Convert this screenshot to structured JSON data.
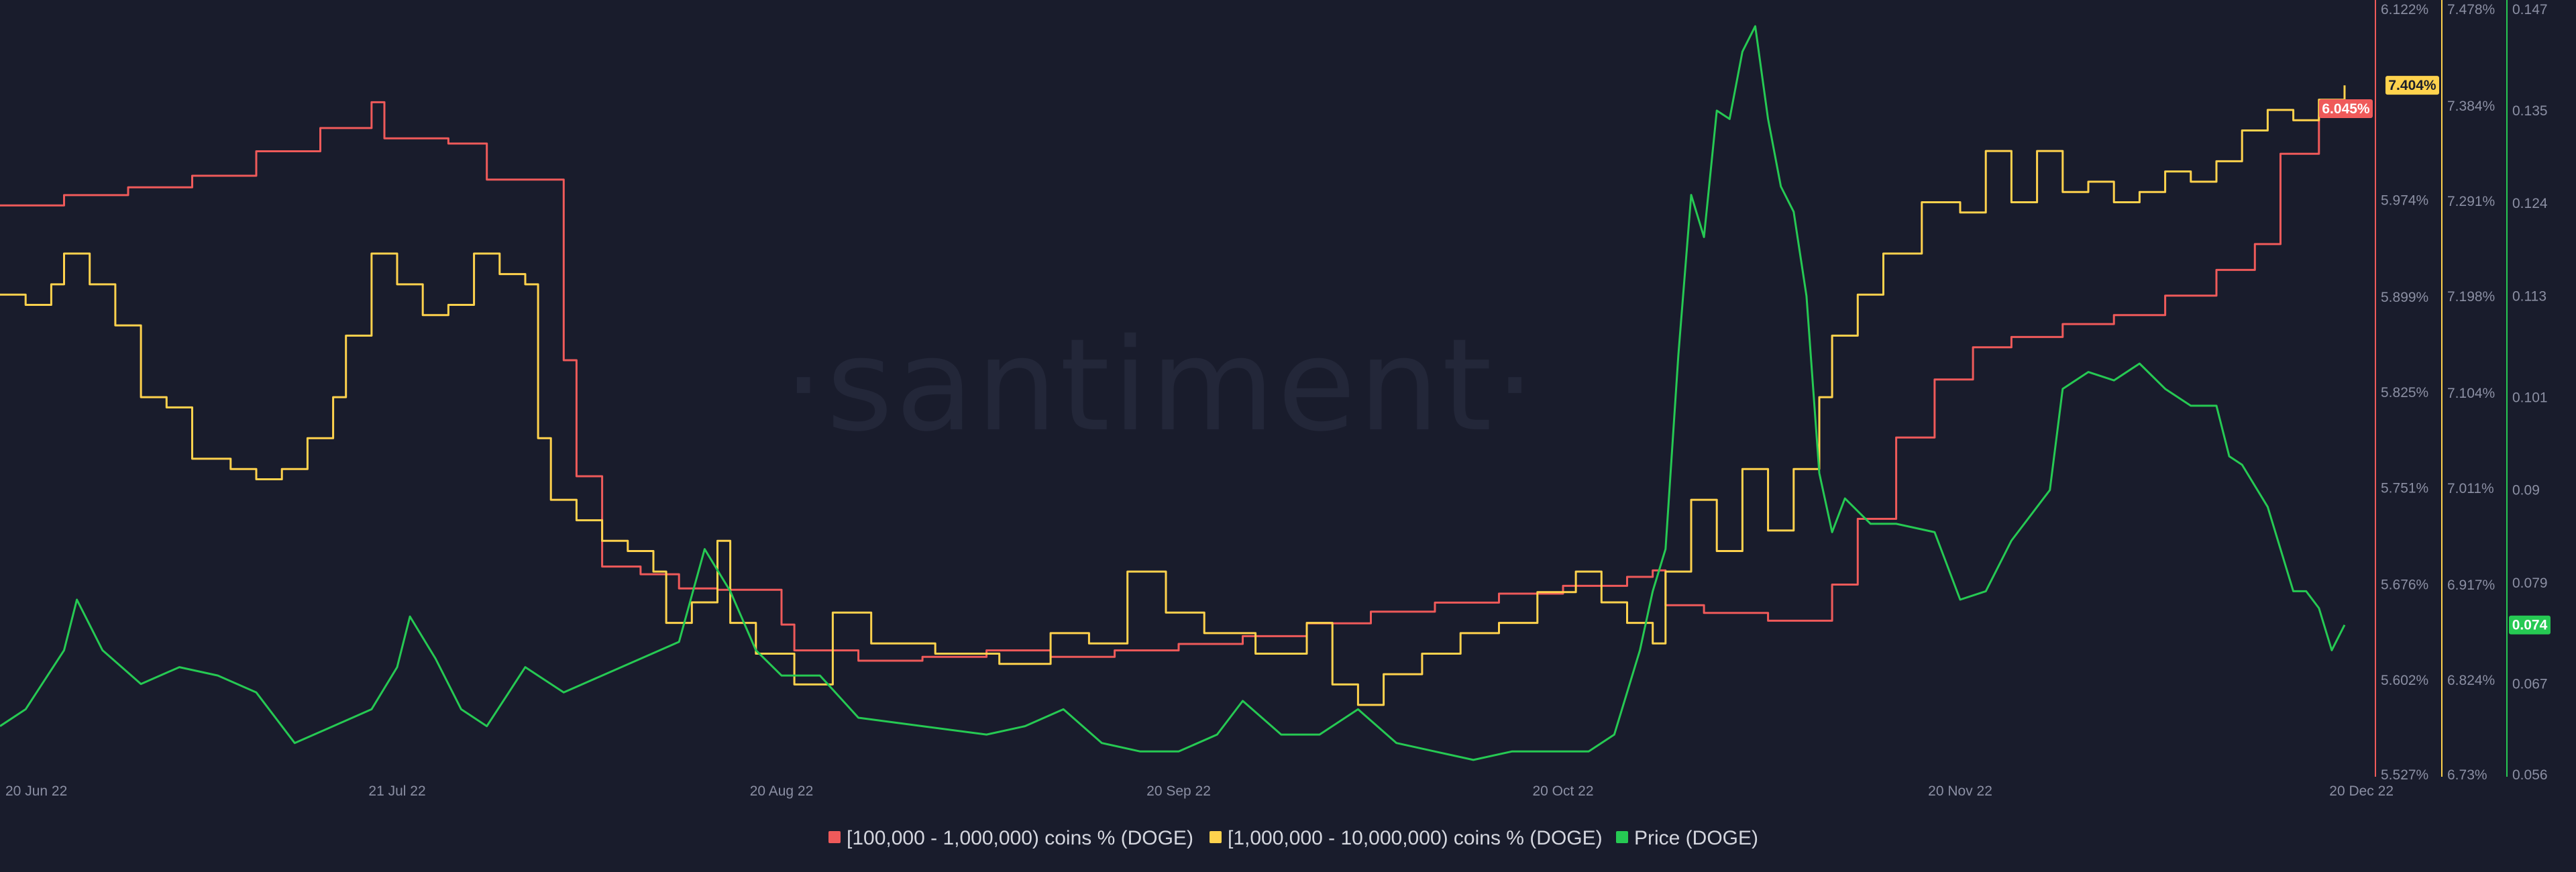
{
  "watermark": "·santiment·",
  "colors": {
    "background": "#191c2c",
    "red": "#ef5a5a",
    "yellow": "#ffd24d",
    "green": "#26c953",
    "axis_text": "#8b8fa3"
  },
  "chart_data": {
    "type": "line",
    "grid": false,
    "legend_position": "bottom-center",
    "x_ticks": [
      "20 Jun 22",
      "21 Jul 22",
      "20 Aug 22",
      "20 Sep 22",
      "20 Oct 22",
      "20 Nov 22",
      "20 Dec 22"
    ],
    "x_range": [
      "2022-06-20",
      "2022-12-20"
    ],
    "axes": {
      "red": {
        "range": [
          5.527,
          6.122
        ],
        "ticks": [
          "6.122%",
          "6.045%",
          "5.974%",
          "5.899%",
          "5.825%",
          "5.751%",
          "5.676%",
          "5.602%",
          "5.527%"
        ],
        "current_label": "6.045%"
      },
      "yellow": {
        "range": [
          6.73,
          7.478
        ],
        "ticks": [
          "7.478%",
          "7.404%",
          "7.384%",
          "7.291%",
          "7.198%",
          "7.104%",
          "7.011%",
          "6.917%",
          "6.824%",
          "6.73%"
        ],
        "current_label": "7.404%"
      },
      "green": {
        "range": [
          0.056,
          0.147
        ],
        "ticks": [
          "0.147",
          "0.135",
          "0.124",
          "0.113",
          "0.101",
          "0.09",
          "0.079",
          "0.067",
          "0.056"
        ],
        "current_label": "0.074"
      }
    },
    "series": [
      {
        "name": "[100,000  - 1,000,000) coins % (DOGE)",
        "axis": "red",
        "points": [
          [
            "2022-06-20",
            5.97
          ],
          [
            "2022-06-25",
            5.978
          ],
          [
            "2022-06-30",
            5.984
          ],
          [
            "2022-07-05",
            5.993
          ],
          [
            "2022-07-10",
            6.012
          ],
          [
            "2022-07-15",
            6.03
          ],
          [
            "2022-07-19",
            6.05
          ],
          [
            "2022-07-20",
            6.022
          ],
          [
            "2022-07-25",
            6.018
          ],
          [
            "2022-07-28",
            5.99
          ],
          [
            "2022-08-02",
            5.99
          ],
          [
            "2022-08-03",
            5.85
          ],
          [
            "2022-08-04",
            5.76
          ],
          [
            "2022-08-06",
            5.69
          ],
          [
            "2022-08-09",
            5.684
          ],
          [
            "2022-08-12",
            5.673
          ],
          [
            "2022-08-15",
            5.672
          ],
          [
            "2022-08-20",
            5.645
          ],
          [
            "2022-08-21",
            5.625
          ],
          [
            "2022-08-26",
            5.617
          ],
          [
            "2022-08-31",
            5.62
          ],
          [
            "2022-09-05",
            5.625
          ],
          [
            "2022-09-10",
            5.62
          ],
          [
            "2022-09-15",
            5.625
          ],
          [
            "2022-09-20",
            5.63
          ],
          [
            "2022-09-25",
            5.636
          ],
          [
            "2022-09-30",
            5.646
          ],
          [
            "2022-10-05",
            5.655
          ],
          [
            "2022-10-10",
            5.662
          ],
          [
            "2022-10-15",
            5.669
          ],
          [
            "2022-10-20",
            5.675
          ],
          [
            "2022-10-25",
            5.682
          ],
          [
            "2022-10-27",
            5.687
          ],
          [
            "2022-10-28",
            5.66
          ],
          [
            "2022-10-31",
            5.654
          ],
          [
            "2022-11-05",
            5.648
          ],
          [
            "2022-11-10",
            5.676
          ],
          [
            "2022-11-12",
            5.727
          ],
          [
            "2022-11-15",
            5.79
          ],
          [
            "2022-11-18",
            5.835
          ],
          [
            "2022-11-21",
            5.86
          ],
          [
            "2022-11-24",
            5.868
          ],
          [
            "2022-11-28",
            5.878
          ],
          [
            "2022-12-02",
            5.885
          ],
          [
            "2022-12-06",
            5.9
          ],
          [
            "2022-12-10",
            5.92
          ],
          [
            "2022-12-13",
            5.94
          ],
          [
            "2022-12-15",
            6.01
          ],
          [
            "2022-12-18",
            6.04
          ],
          [
            "2022-12-20",
            6.045
          ]
        ]
      },
      {
        "name": "[1,000,000 - 10,000,000) coins % (DOGE)",
        "axis": "yellow",
        "points": [
          [
            "2022-06-20",
            7.2
          ],
          [
            "2022-06-22",
            7.19
          ],
          [
            "2022-06-24",
            7.21
          ],
          [
            "2022-06-25",
            7.24
          ],
          [
            "2022-06-27",
            7.21
          ],
          [
            "2022-06-29",
            7.17
          ],
          [
            "2022-07-01",
            7.1
          ],
          [
            "2022-07-03",
            7.09
          ],
          [
            "2022-07-05",
            7.04
          ],
          [
            "2022-07-08",
            7.03
          ],
          [
            "2022-07-10",
            7.02
          ],
          [
            "2022-07-12",
            7.03
          ],
          [
            "2022-07-14",
            7.06
          ],
          [
            "2022-07-16",
            7.1
          ],
          [
            "2022-07-17",
            7.16
          ],
          [
            "2022-07-19",
            7.24
          ],
          [
            "2022-07-21",
            7.21
          ],
          [
            "2022-07-23",
            7.18
          ],
          [
            "2022-07-25",
            7.19
          ],
          [
            "2022-07-27",
            7.24
          ],
          [
            "2022-07-29",
            7.22
          ],
          [
            "2022-07-31",
            7.21
          ],
          [
            "2022-08-01",
            7.06
          ],
          [
            "2022-08-02",
            7.0
          ],
          [
            "2022-08-04",
            6.98
          ],
          [
            "2022-08-06",
            6.96
          ],
          [
            "2022-08-08",
            6.95
          ],
          [
            "2022-08-10",
            6.93
          ],
          [
            "2022-08-11",
            6.88
          ],
          [
            "2022-08-13",
            6.9
          ],
          [
            "2022-08-15",
            6.96
          ],
          [
            "2022-08-16",
            6.88
          ],
          [
            "2022-08-18",
            6.85
          ],
          [
            "2022-08-21",
            6.82
          ],
          [
            "2022-08-24",
            6.89
          ],
          [
            "2022-08-27",
            6.86
          ],
          [
            "2022-09-01",
            6.85
          ],
          [
            "2022-09-06",
            6.84
          ],
          [
            "2022-09-10",
            6.87
          ],
          [
            "2022-09-13",
            6.86
          ],
          [
            "2022-09-16",
            6.93
          ],
          [
            "2022-09-19",
            6.89
          ],
          [
            "2022-09-22",
            6.87
          ],
          [
            "2022-09-26",
            6.85
          ],
          [
            "2022-09-30",
            6.88
          ],
          [
            "2022-10-02",
            6.82
          ],
          [
            "2022-10-04",
            6.8
          ],
          [
            "2022-10-06",
            6.83
          ],
          [
            "2022-10-09",
            6.85
          ],
          [
            "2022-10-12",
            6.87
          ],
          [
            "2022-10-15",
            6.88
          ],
          [
            "2022-10-18",
            6.91
          ],
          [
            "2022-10-21",
            6.93
          ],
          [
            "2022-10-23",
            6.9
          ],
          [
            "2022-10-25",
            6.88
          ],
          [
            "2022-10-27",
            6.86
          ],
          [
            "2022-10-28",
            6.93
          ],
          [
            "2022-10-30",
            7.0
          ],
          [
            "2022-11-01",
            6.95
          ],
          [
            "2022-11-03",
            7.03
          ],
          [
            "2022-11-05",
            6.97
          ],
          [
            "2022-11-07",
            7.03
          ],
          [
            "2022-11-09",
            7.1
          ],
          [
            "2022-11-10",
            7.16
          ],
          [
            "2022-11-12",
            7.2
          ],
          [
            "2022-11-14",
            7.24
          ],
          [
            "2022-11-17",
            7.29
          ],
          [
            "2022-11-20",
            7.28
          ],
          [
            "2022-11-22",
            7.34
          ],
          [
            "2022-11-24",
            7.29
          ],
          [
            "2022-11-26",
            7.34
          ],
          [
            "2022-11-28",
            7.3
          ],
          [
            "2022-11-30",
            7.31
          ],
          [
            "2022-12-02",
            7.29
          ],
          [
            "2022-12-04",
            7.3
          ],
          [
            "2022-12-06",
            7.32
          ],
          [
            "2022-12-08",
            7.31
          ],
          [
            "2022-12-10",
            7.33
          ],
          [
            "2022-12-12",
            7.36
          ],
          [
            "2022-12-14",
            7.38
          ],
          [
            "2022-12-16",
            7.37
          ],
          [
            "2022-12-18",
            7.39
          ],
          [
            "2022-12-20",
            7.404
          ]
        ]
      },
      {
        "name": "Price (DOGE)",
        "axis": "green",
        "points": [
          [
            "2022-06-20",
            0.062
          ],
          [
            "2022-06-22",
            0.064
          ],
          [
            "2022-06-25",
            0.071
          ],
          [
            "2022-06-26",
            0.077
          ],
          [
            "2022-06-28",
            0.071
          ],
          [
            "2022-07-01",
            0.067
          ],
          [
            "2022-07-04",
            0.069
          ],
          [
            "2022-07-07",
            0.068
          ],
          [
            "2022-07-10",
            0.066
          ],
          [
            "2022-07-13",
            0.06
          ],
          [
            "2022-07-16",
            0.062
          ],
          [
            "2022-07-19",
            0.064
          ],
          [
            "2022-07-21",
            0.069
          ],
          [
            "2022-07-22",
            0.075
          ],
          [
            "2022-07-24",
            0.07
          ],
          [
            "2022-07-26",
            0.064
          ],
          [
            "2022-07-28",
            0.062
          ],
          [
            "2022-07-31",
            0.069
          ],
          [
            "2022-08-03",
            0.066
          ],
          [
            "2022-08-06",
            0.068
          ],
          [
            "2022-08-09",
            0.07
          ],
          [
            "2022-08-12",
            0.072
          ],
          [
            "2022-08-14",
            0.083
          ],
          [
            "2022-08-16",
            0.078
          ],
          [
            "2022-08-18",
            0.071
          ],
          [
            "2022-08-20",
            0.068
          ],
          [
            "2022-08-23",
            0.068
          ],
          [
            "2022-08-26",
            0.063
          ],
          [
            "2022-08-31",
            0.062
          ],
          [
            "2022-09-05",
            0.061
          ],
          [
            "2022-09-08",
            0.062
          ],
          [
            "2022-09-11",
            0.064
          ],
          [
            "2022-09-14",
            0.06
          ],
          [
            "2022-09-17",
            0.059
          ],
          [
            "2022-09-20",
            0.059
          ],
          [
            "2022-09-23",
            0.061
          ],
          [
            "2022-09-25",
            0.065
          ],
          [
            "2022-09-28",
            0.061
          ],
          [
            "2022-10-01",
            0.061
          ],
          [
            "2022-10-04",
            0.064
          ],
          [
            "2022-10-07",
            0.06
          ],
          [
            "2022-10-10",
            0.059
          ],
          [
            "2022-10-13",
            0.058
          ],
          [
            "2022-10-16",
            0.059
          ],
          [
            "2022-10-19",
            0.059
          ],
          [
            "2022-10-22",
            0.059
          ],
          [
            "2022-10-24",
            0.061
          ],
          [
            "2022-10-26",
            0.071
          ],
          [
            "2022-10-27",
            0.078
          ],
          [
            "2022-10-28",
            0.083
          ],
          [
            "2022-10-29",
            0.106
          ],
          [
            "2022-10-30",
            0.125
          ],
          [
            "2022-10-31",
            0.12
          ],
          [
            "2022-11-01",
            0.135
          ],
          [
            "2022-11-02",
            0.134
          ],
          [
            "2022-11-03",
            0.142
          ],
          [
            "2022-11-04",
            0.145
          ],
          [
            "2022-11-05",
            0.134
          ],
          [
            "2022-11-06",
            0.126
          ],
          [
            "2022-11-07",
            0.123
          ],
          [
            "2022-11-08",
            0.113
          ],
          [
            "2022-11-09",
            0.092
          ],
          [
            "2022-11-10",
            0.085
          ],
          [
            "2022-11-11",
            0.089
          ],
          [
            "2022-11-13",
            0.086
          ],
          [
            "2022-11-15",
            0.086
          ],
          [
            "2022-11-18",
            0.085
          ],
          [
            "2022-11-20",
            0.077
          ],
          [
            "2022-11-22",
            0.078
          ],
          [
            "2022-11-24",
            0.084
          ],
          [
            "2022-11-27",
            0.09
          ],
          [
            "2022-11-28",
            0.102
          ],
          [
            "2022-11-30",
            0.104
          ],
          [
            "2022-12-02",
            0.103
          ],
          [
            "2022-12-04",
            0.105
          ],
          [
            "2022-12-06",
            0.102
          ],
          [
            "2022-12-08",
            0.1
          ],
          [
            "2022-12-10",
            0.1
          ],
          [
            "2022-12-11",
            0.094
          ],
          [
            "2022-12-12",
            0.093
          ],
          [
            "2022-12-14",
            0.088
          ],
          [
            "2022-12-16",
            0.078
          ],
          [
            "2022-12-17",
            0.078
          ],
          [
            "2022-12-18",
            0.076
          ],
          [
            "2022-12-19",
            0.071
          ],
          [
            "2022-12-20",
            0.074
          ]
        ]
      }
    ]
  }
}
